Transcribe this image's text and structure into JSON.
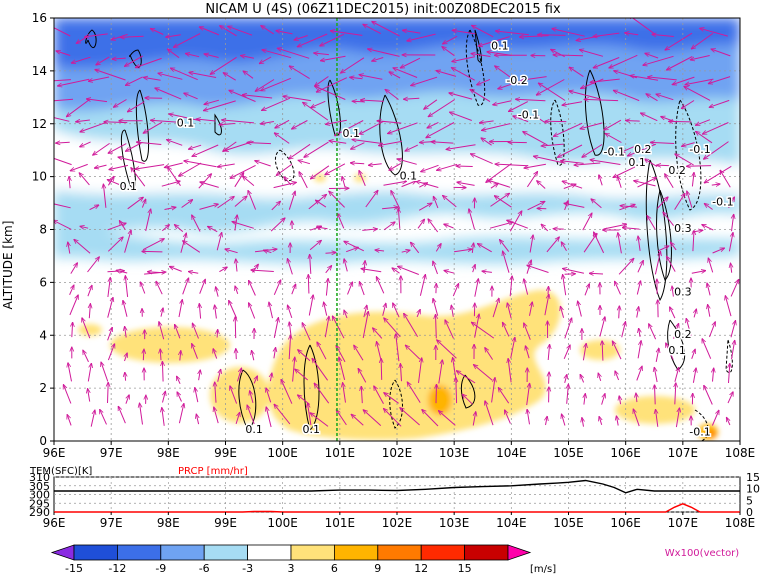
{
  "chart_data": [
    {
      "type": "heatmap",
      "title": "NICAM U (4S) (06Z11DEC2015) init:00Z08DEC2015 fix",
      "ylabel": "ALTITUDE [km]",
      "xlim": [
        96,
        108
      ],
      "ylim": [
        0,
        16
      ],
      "x_ticks": [
        "96E",
        "97E",
        "98E",
        "99E",
        "100E",
        "101E",
        "102E",
        "103E",
        "104E",
        "105E",
        "106E",
        "107E",
        "108E"
      ],
      "y_ticks": [
        "0",
        "2",
        "4",
        "6",
        "8",
        "10",
        "12",
        "14",
        "16"
      ],
      "grid": true,
      "reference_line_lon": 100.95,
      "contour_labels": [
        {
          "text": "0.1",
          "lon": 98.3,
          "alt": 11.9
        },
        {
          "text": "0.1",
          "lon": 97.3,
          "alt": 9.5
        },
        {
          "text": "0.1",
          "lon": 101.2,
          "alt": 11.5
        },
        {
          "text": "0.1",
          "lon": 102.2,
          "alt": 9.9
        },
        {
          "text": "0.1",
          "lon": 103.8,
          "alt": 14.8
        },
        {
          "text": "-0.2",
          "lon": 104.1,
          "alt": 13.5
        },
        {
          "text": "-0.1",
          "lon": 104.3,
          "alt": 12.2
        },
        {
          "text": "-0.1",
          "lon": 105.8,
          "alt": 10.8
        },
        {
          "text": "0.2",
          "lon": 106.3,
          "alt": 10.9
        },
        {
          "text": "0.1",
          "lon": 106.2,
          "alt": 10.4
        },
        {
          "text": "-0.1",
          "lon": 107.3,
          "alt": 10.9
        },
        {
          "text": "0.2",
          "lon": 106.9,
          "alt": 10.1
        },
        {
          "text": "-0.1",
          "lon": 107.7,
          "alt": 8.9
        },
        {
          "text": "0.3",
          "lon": 107.0,
          "alt": 7.9
        },
        {
          "text": "0.3",
          "lon": 107.0,
          "alt": 5.5
        },
        {
          "text": "0.2",
          "lon": 107.0,
          "alt": 3.9
        },
        {
          "text": "0.1",
          "lon": 106.9,
          "alt": 3.3
        },
        {
          "text": "0.1",
          "lon": 99.5,
          "alt": 0.3
        },
        {
          "text": "0.1",
          "lon": 100.5,
          "alt": 0.3
        },
        {
          "text": "-0.1",
          "lon": 107.3,
          "alt": 0.2
        }
      ]
    },
    {
      "type": "line",
      "labels": [
        "TEM(SFC)[K]",
        "PRCP [mm/hr]"
      ],
      "left_ticks": [
        "310",
        "305",
        "300",
        "295",
        "290"
      ],
      "right_ticks": [
        "15",
        "10",
        "5",
        "0"
      ],
      "x_ticks": [
        "96E",
        "97E",
        "98E",
        "99E",
        "100E",
        "101E",
        "102E",
        "103E",
        "104E",
        "105E",
        "106E",
        "107E",
        "108E"
      ],
      "series": [
        {
          "name": "TEM(SFC)[K]",
          "color": "#000000",
          "x": [
            96,
            97,
            98,
            99,
            99.5,
            100,
            100.5,
            101,
            101.5,
            102,
            102.5,
            103,
            103.5,
            104,
            104.5,
            104.8,
            105,
            105.3,
            105.6,
            105.8,
            106,
            106.2,
            106.5,
            107,
            107.5,
            108
          ],
          "y": [
            302,
            302,
            302,
            302,
            302,
            302,
            302,
            302.5,
            302.5,
            302.3,
            303,
            304,
            304.5,
            305,
            306,
            306.5,
            307,
            308,
            306,
            304,
            301,
            303,
            302,
            302,
            302,
            302
          ]
        },
        {
          "name": "PRCP [mm/hr]",
          "color": "#ff0000",
          "x": [
            96,
            99.3,
            99.5,
            99.8,
            100,
            106.7,
            106.85,
            107,
            107.15,
            107.3,
            108
          ],
          "y": [
            0,
            0,
            0.2,
            0.2,
            0,
            0,
            2,
            3.5,
            2,
            0,
            0
          ]
        }
      ]
    }
  ],
  "colorbar": {
    "ticks": [
      "-15",
      "-12",
      "-9",
      "-6",
      "-3",
      "3",
      "6",
      "9",
      "12",
      "15"
    ],
    "unit": "[m/s]",
    "vector_label": "Wx100(vector)",
    "colors": [
      "#8a2be2",
      "#1f4fd8",
      "#3c6fe8",
      "#6fa3f2",
      "#a6dcf3",
      "#ffffff",
      "#ffe27a",
      "#ffb400",
      "#ff7a00",
      "#ff2a00",
      "#c80000",
      "#ff00aa"
    ]
  }
}
